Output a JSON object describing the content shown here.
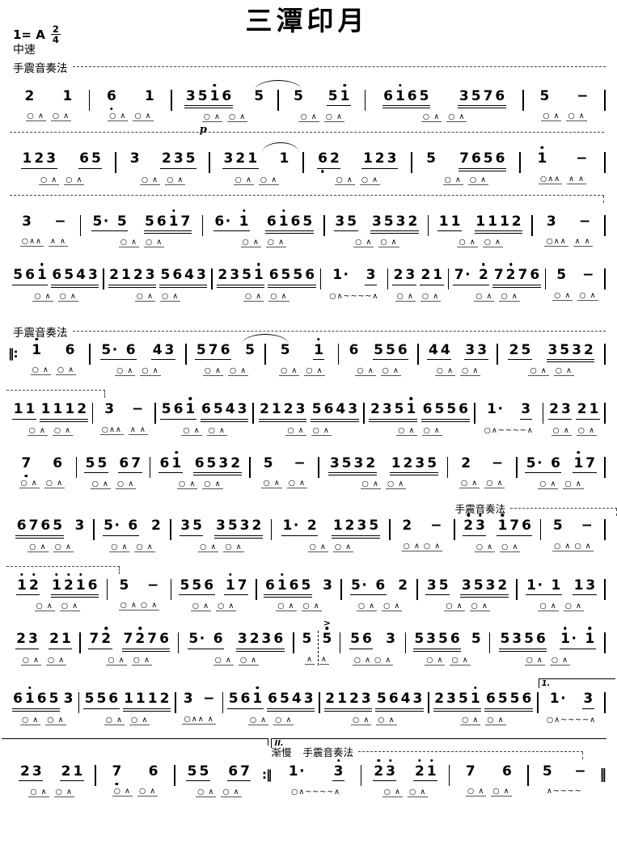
{
  "header": {
    "title": "三潭印月",
    "key": "1= A",
    "meter": {
      "num": "2",
      "den": "4"
    },
    "tempo": "中速",
    "technique": "手震音奏法"
  },
  "labels": {
    "technique": "手震音奏法",
    "rit": "渐慢",
    "volta1": "1.",
    "volta2": "II.",
    "dynamic": "p",
    "accent": ">",
    "repeat_start": "‖:",
    "repeat_end": ":‖",
    "final_bar": "‖"
  },
  "lines": [
    {
      "rule_after": "dashed",
      "measures": [
        {
          "g": [
            "2",
            "1"
          ],
          "u": [
            0,
            0
          ],
          "a": "○ ∧  ○ ∧"
        },
        {
          "g": [
            "6,",
            "1"
          ],
          "u": [
            0,
            0
          ],
          "a": "○ ∧  ○ ∧"
        },
        {
          "g": [
            "351'6",
            "5"
          ],
          "u": [
            2,
            0
          ],
          "a": "○ ∧  ○ ∧",
          "dyn": "p",
          "slurAfter": true
        },
        {
          "g": [
            "5",
            "51'"
          ],
          "u": [
            0,
            1
          ],
          "a": "○ ∧  ○ ∧"
        },
        {
          "g": [
            "61'65",
            "3576"
          ],
          "u": [
            2,
            2
          ],
          "a": "○ ∧  ○ ∧"
        },
        {
          "g": [
            "5",
            "-"
          ],
          "u": [
            0,
            0
          ],
          "a": "○ ∧  ○ ∧"
        }
      ]
    },
    {
      "rule_after": "dashed-hook",
      "measures": [
        {
          "g": [
            "123",
            "65"
          ],
          "u": [
            1,
            1
          ],
          "a": "○ ∧  ○ ∧"
        },
        {
          "g": [
            "3",
            "235"
          ],
          "u": [
            0,
            1
          ],
          "a": "○ ∧  ○ ∧"
        },
        {
          "g": [
            "321",
            "1"
          ],
          "u": [
            1,
            0
          ],
          "a": "○ ∧  ○ ∧",
          "slurIn": true
        },
        {
          "g": [
            "6,2",
            "123"
          ],
          "u": [
            1,
            1
          ],
          "a": "○ ∧  ○ ∧"
        },
        {
          "g": [
            "5",
            "7656"
          ],
          "u": [
            0,
            2
          ],
          "a": "○ ∧  ○ ∧"
        },
        {
          "g": [
            "1'",
            "-"
          ],
          "u": [
            0,
            0
          ],
          "a": "○∧∧  ∧ ∧"
        }
      ]
    },
    {
      "measures": [
        {
          "g": [
            "3",
            "-"
          ],
          "u": [
            0,
            0
          ],
          "a": "○∧∧  ∧ ∧"
        },
        {
          "g": [
            "5. 5",
            "561'7"
          ],
          "u": [
            1,
            2
          ],
          "a": "○ ∧  ○ ∧"
        },
        {
          "g": [
            "6. 1'",
            "61'65"
          ],
          "u": [
            1,
            2
          ],
          "a": "○ ∧  ○ ∧"
        },
        {
          "g": [
            "35",
            "3532"
          ],
          "u": [
            1,
            2
          ],
          "a": "○ ∧  ○ ∧"
        },
        {
          "g": [
            "11",
            "1112"
          ],
          "u": [
            1,
            2
          ],
          "a": "○ ∧  ○ ∧"
        },
        {
          "g": [
            "3",
            "-"
          ],
          "u": [
            0,
            0
          ],
          "a": "○∧∧  ∧ ∧"
        }
      ]
    },
    {
      "measures": [
        {
          "g": [
            "561'",
            "6543"
          ],
          "u": [
            1,
            2
          ],
          "a": "○ ∧  ○ ∧"
        },
        {
          "g": [
            "2123",
            "5643"
          ],
          "u": [
            2,
            2
          ],
          "a": "○ ∧  ○ ∧"
        },
        {
          "g": [
            "2351'",
            "6556"
          ],
          "u": [
            2,
            2
          ],
          "a": "○ ∧  ○ ∧"
        },
        {
          "g": [
            "1.",
            "3"
          ],
          "u": [
            0,
            1
          ],
          "a": "○∧~~~~∧"
        },
        {
          "g": [
            "23",
            "21"
          ],
          "u": [
            1,
            1
          ],
          "a": "○ ∧  ○ ∧"
        },
        {
          "g": [
            "7. 2'",
            "72'76"
          ],
          "u": [
            1,
            2
          ],
          "a": "○ ∧  ○ ∧"
        },
        {
          "g": [
            "5",
            "-"
          ],
          "u": [
            0,
            0
          ],
          "a": "○ ∧  ○ ∧"
        }
      ]
    },
    {
      "pre_label": true,
      "bar_before": "repeat-start",
      "measures": [
        {
          "g": [
            "1'",
            "6"
          ],
          "u": [
            0,
            0
          ],
          "a": "○ ∧  ○ ∧"
        },
        {
          "g": [
            "5. 6",
            "43"
          ],
          "u": [
            1,
            1
          ],
          "a": "○ ∧  ○ ∧"
        },
        {
          "g": [
            "576",
            "5"
          ],
          "u": [
            1,
            0
          ],
          "a": "○ ∧  ○ ∧",
          "slurAfter": true
        },
        {
          "g": [
            "5",
            "1'"
          ],
          "u": [
            0,
            1
          ],
          "a": "○ ∧  ○ ∧"
        },
        {
          "g": [
            "6",
            "556"
          ],
          "u": [
            0,
            1
          ],
          "a": "○ ∧  ○ ∧"
        },
        {
          "g": [
            "44",
            "33"
          ],
          "u": [
            1,
            1
          ],
          "a": "○ ∧  ○ ∧"
        },
        {
          "g": [
            "25",
            "3532"
          ],
          "u": [
            1,
            2
          ],
          "a": "○ ∧  ○ ∧"
        }
      ]
    },
    {
      "cls": "pt20",
      "cont_bracket": true,
      "measures": [
        {
          "g": [
            "11",
            "1112"
          ],
          "u": [
            1,
            2
          ],
          "a": "○ ∧  ○ ∧"
        },
        {
          "g": [
            "3",
            "-"
          ],
          "u": [
            0,
            0
          ],
          "a": "○∧∧  ∧ ∧"
        },
        {
          "g": [
            "561'",
            "6543"
          ],
          "u": [
            1,
            2
          ],
          "a": "○ ∧  ○ ∧"
        },
        {
          "g": [
            "2123",
            "5643"
          ],
          "u": [
            2,
            2
          ],
          "a": "○ ∧  ○ ∧"
        },
        {
          "g": [
            "2351'",
            "6556"
          ],
          "u": [
            2,
            2
          ],
          "a": "○ ∧  ○ ∧"
        },
        {
          "g": [
            "1.",
            "3"
          ],
          "u": [
            0,
            1
          ],
          "a": "○∧~~~~∧"
        },
        {
          "g": [
            "23",
            "21"
          ],
          "u": [
            1,
            1
          ],
          "a": "○ ∧  ○ ∧"
        }
      ]
    },
    {
      "measures": [
        {
          "g": [
            "7,",
            "6"
          ],
          "u": [
            0,
            0
          ],
          "a": "○ ∧  ○ ∧"
        },
        {
          "g": [
            "55",
            "67"
          ],
          "u": [
            1,
            1
          ],
          "a": "○ ∧  ○ ∧"
        },
        {
          "g": [
            "61'",
            "6532"
          ],
          "u": [
            1,
            2
          ],
          "a": "○ ∧  ○ ∧"
        },
        {
          "g": [
            "5",
            "-"
          ],
          "u": [
            0,
            0
          ],
          "a": "○ ∧  ○ ∧"
        },
        {
          "g": [
            "3532",
            "1235"
          ],
          "u": [
            2,
            2
          ],
          "a": "○ ∧  ○ ∧"
        },
        {
          "g": [
            "2",
            "-"
          ],
          "u": [
            0,
            0
          ],
          "a": "○ ∧  ○ ∧"
        },
        {
          "g": [
            "5. 6",
            "1'7"
          ],
          "u": [
            1,
            1
          ],
          "a": "○ ∧  ○ ∧"
        }
      ]
    },
    {
      "cls": "pt24",
      "measures": [
        {
          "g": [
            "6765",
            "3"
          ],
          "u": [
            2,
            0
          ],
          "a": "○ ∧  ○ ∧"
        },
        {
          "g": [
            "5. 6",
            "2"
          ],
          "u": [
            1,
            0
          ],
          "a": "○ ∧  ○ ∧"
        },
        {
          "g": [
            "35",
            "3532"
          ],
          "u": [
            1,
            2
          ],
          "a": "○ ∧  ○ ∧"
        },
        {
          "g": [
            "1. 2",
            "1235"
          ],
          "u": [
            1,
            2
          ],
          "a": "○ ∧  ○ ∧"
        },
        {
          "g": [
            "2",
            "-"
          ],
          "u": [
            0,
            0
          ],
          "a": "○ ∧ ○ ∧"
        },
        {
          "g": [
            "2'3'",
            "1'76"
          ],
          "u": [
            1,
            1
          ],
          "a": "○ ∧  ○ ∧",
          "labelAbove": true
        },
        {
          "g": [
            "5",
            "-"
          ],
          "u": [
            0,
            0
          ],
          "a": "○ ∧ ○ ∧"
        }
      ]
    },
    {
      "cls": "pt20",
      "cont_bracket": true,
      "measures": [
        {
          "g": [
            "1'2'",
            "1'2'1'6"
          ],
          "u": [
            1,
            2
          ],
          "a": "○ ∧  ○ ∧"
        },
        {
          "g": [
            "5",
            "-"
          ],
          "u": [
            0,
            0
          ],
          "a": "○ ∧ ○ ∧"
        },
        {
          "g": [
            "556",
            "1'7"
          ],
          "u": [
            1,
            1
          ],
          "a": "○ ∧  ○ ∧"
        },
        {
          "g": [
            "61'65",
            "3"
          ],
          "u": [
            2,
            0
          ],
          "a": "○ ∧  ○ ∧"
        },
        {
          "g": [
            "5. 6",
            "2"
          ],
          "u": [
            1,
            0
          ],
          "a": "○ ∧  ○ ∧"
        },
        {
          "g": [
            "35",
            "3532"
          ],
          "u": [
            1,
            2
          ],
          "a": "○ ∧  ○ ∧"
        },
        {
          "g": [
            "1. 1",
            "13"
          ],
          "u": [
            1,
            1
          ],
          "a": "○ ∧  ○ ∧"
        }
      ]
    },
    {
      "measures": [
        {
          "g": [
            "23",
            "21"
          ],
          "u": [
            1,
            1
          ],
          "a": "○ ∧  ○ ∧"
        },
        {
          "g": [
            "72'",
            "72'76"
          ],
          "u": [
            1,
            2
          ],
          "a": "○ ∧  ○ ∧"
        },
        {
          "g": [
            "5. 6",
            "3236"
          ],
          "u": [
            1,
            2
          ],
          "a": "○ ∧  ○ ∧"
        },
        {
          "g": [
            "5",
            "5'"
          ],
          "u": [
            0,
            0
          ],
          "a": "∧  ∧",
          "dashedBar": true,
          "accIdx": 1
        },
        {
          "g": [
            "56",
            "3"
          ],
          "u": [
            1,
            0
          ],
          "a": "○ ∧ ○ ∧"
        },
        {
          "g": [
            "5356",
            "5"
          ],
          "u": [
            2,
            0
          ],
          "a": "○ ∧  ○ ∧"
        },
        {
          "g": [
            "5356",
            "1'. 1'"
          ],
          "u": [
            2,
            1
          ],
          "a": "○ ∧  ○ ∧"
        }
      ]
    },
    {
      "cls": "pt20",
      "measures": [
        {
          "g": [
            "61'65",
            "3"
          ],
          "u": [
            2,
            0
          ],
          "a": "○ ∧  ○ ∧"
        },
        {
          "g": [
            "556",
            "1112"
          ],
          "u": [
            1,
            2
          ],
          "a": "○ ∧  ○ ∧"
        },
        {
          "g": [
            "3",
            "-"
          ],
          "u": [
            0,
            0
          ],
          "a": "○∧∧ ∧"
        },
        {
          "g": [
            "561'",
            "6543"
          ],
          "u": [
            1,
            2
          ],
          "a": "○ ∧  ○ ∧"
        },
        {
          "g": [
            "2123",
            "5643"
          ],
          "u": [
            2,
            2
          ],
          "a": "○ ∧  ○ ∧"
        },
        {
          "g": [
            "2351'",
            "6556"
          ],
          "u": [
            2,
            2
          ],
          "a": "○ ∧  ○ ∧"
        },
        {
          "g": [
            "1.",
            "3"
          ],
          "u": [
            0,
            1
          ],
          "a": "○∧~~~~∧",
          "volta": "1."
        }
      ]
    },
    {
      "cls": "pt34",
      "measures": [
        {
          "g": [
            "23",
            "21"
          ],
          "u": [
            1,
            1
          ],
          "a": "○ ∧  ○ ∧",
          "topline": true
        },
        {
          "g": [
            "7,",
            "6"
          ],
          "u": [
            0,
            0
          ],
          "a": "○ ∧  ○ ∧",
          "topline": true
        },
        {
          "g": [
            "55",
            "67"
          ],
          "u": [
            1,
            1
          ],
          "a": "○ ∧  ○ ∧",
          "topline": true,
          "tick": true,
          "barAfter": "repeat-end"
        },
        {
          "g": [
            "1.",
            "3'"
          ],
          "u": [
            0,
            1
          ],
          "a": "○∧~~~~∧",
          "volta": "II.",
          "voltaHigh": true,
          "labelAbove2": true
        },
        {
          "g": [
            "2'3'",
            "2'1'"
          ],
          "u": [
            1,
            1
          ],
          "a": "○ ∧  ○ ∧",
          "voltaCont": true
        },
        {
          "g": [
            "7",
            "6"
          ],
          "u": [
            0,
            0
          ],
          "a": "○ ∧  ○ ∧",
          "voltaCont": true
        },
        {
          "g": [
            "5",
            "-"
          ],
          "u": [
            0,
            0
          ],
          "a": "∧~~~~",
          "voltaCont": true,
          "barAfter": "final"
        }
      ]
    }
  ]
}
